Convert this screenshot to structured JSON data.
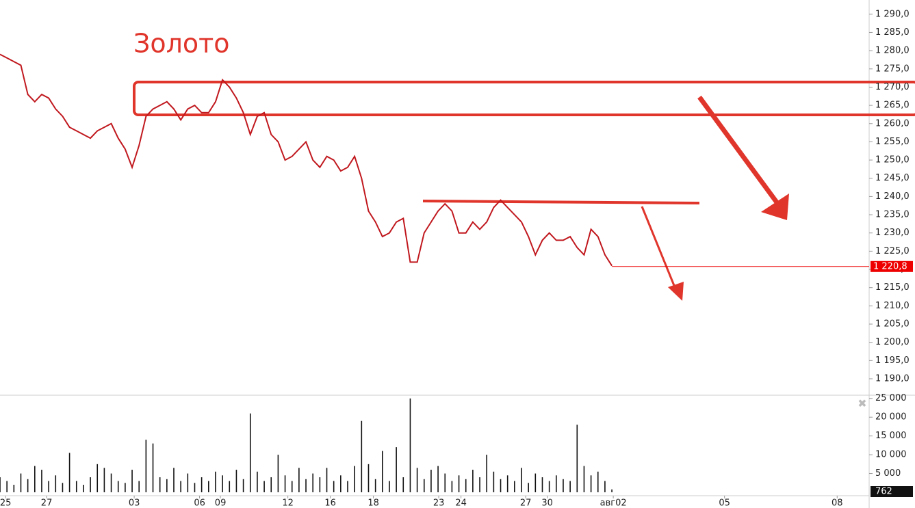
{
  "chart_data": [
    {
      "type": "line",
      "title": "Золото",
      "color": "#c0181e",
      "values": [
        1279,
        1278,
        1277,
        1276,
        1268,
        1266,
        1268,
        1267,
        1264,
        1262,
        1259,
        1258,
        1257,
        1256,
        1258,
        1259,
        1260,
        1256,
        1253,
        1248,
        1254,
        1262,
        1264,
        1265,
        1266,
        1264,
        1261,
        1264,
        1265,
        1263,
        1263,
        1266,
        1272,
        1270,
        1267,
        1263,
        1257,
        1262,
        1263,
        1257,
        1255,
        1250,
        1251,
        1253,
        1255,
        1250,
        1248,
        1251,
        1250,
        1247,
        1248,
        1251,
        1245,
        1236,
        1233,
        1229,
        1230,
        1233,
        1234,
        1222,
        1222,
        1230,
        1233,
        1236,
        1238,
        1236,
        1230,
        1230,
        1233,
        1231,
        1233,
        1237,
        1239,
        1237,
        1235,
        1233,
        1229,
        1224,
        1228,
        1230,
        1228,
        1228,
        1229,
        1226,
        1224,
        1231,
        1229,
        1224,
        1221
      ],
      "last": {
        "value": 1220.8,
        "label": "1 220,8"
      },
      "xlim": [
        0,
        125
      ],
      "ylim": [
        1185.5,
        1293.9
      ],
      "yticks": [
        {
          "value": 1190,
          "label": "1 190,0"
        },
        {
          "value": 1195,
          "label": "1 195,0"
        },
        {
          "value": 1200,
          "label": "1 200,0"
        },
        {
          "value": 1205,
          "label": "1 205,0"
        },
        {
          "value": 1210,
          "label": "1 210,0"
        },
        {
          "value": 1215,
          "label": "1 215,0"
        },
        {
          "value": 1220,
          "label": "1 220,0"
        },
        {
          "value": 1225,
          "label": "1 225,0"
        },
        {
          "value": 1230,
          "label": "1 230,0"
        },
        {
          "value": 1235,
          "label": "1 235,0"
        },
        {
          "value": 1240,
          "label": "1 240,0"
        },
        {
          "value": 1245,
          "label": "1 245,0"
        },
        {
          "value": 1250,
          "label": "1 250,0"
        },
        {
          "value": 1255,
          "label": "1 255,0"
        },
        {
          "value": 1260,
          "label": "1 260,0"
        },
        {
          "value": 1265,
          "label": "1 265,0"
        },
        {
          "value": 1270,
          "label": "1 270,0"
        },
        {
          "value": 1275,
          "label": "1 275,0"
        },
        {
          "value": 1280,
          "label": "1 280,0"
        },
        {
          "value": 1285,
          "label": "1 285,0"
        },
        {
          "value": 1290,
          "label": "1 290,0"
        }
      ]
    },
    {
      "type": "bar",
      "color": "#111111",
      "values": [
        4000,
        3000,
        2000,
        5000,
        3500,
        7000,
        6000,
        3000,
        4500,
        2500,
        10500,
        3000,
        2000,
        4000,
        7500,
        6500,
        5000,
        3000,
        2500,
        6000,
        3000,
        14000,
        13000,
        4000,
        3500,
        6500,
        3000,
        5000,
        2500,
        4000,
        3000,
        5500,
        4500,
        3000,
        6000,
        3500,
        21000,
        5500,
        3000,
        4000,
        10000,
        4500,
        3000,
        6500,
        3500,
        5000,
        4000,
        6500,
        3000,
        4500,
        3000,
        7000,
        19000,
        7500,
        3500,
        11000,
        3000,
        12000,
        4000,
        25000,
        6500,
        3500,
        6000,
        7000,
        5000,
        3000,
        4500,
        3500,
        6000,
        4000,
        10000,
        5500,
        3500,
        4500,
        3000,
        6500,
        2500,
        5000,
        4000,
        3000,
        4500,
        3500,
        3000,
        18000,
        7000,
        4500,
        5500,
        3000,
        762
      ],
      "xlim": [
        0,
        125
      ],
      "ylim": [
        0,
        25500
      ],
      "yticks": [
        {
          "value": 5000,
          "label": "5 000"
        },
        {
          "value": 10000,
          "label": "10 000"
        },
        {
          "value": 15000,
          "label": "15 000"
        },
        {
          "value": 20000,
          "label": "20 000"
        },
        {
          "value": 25000,
          "label": "25 000"
        }
      ],
      "xticks": [
        {
          "value": 0.8,
          "label": "25"
        },
        {
          "value": 6.7,
          "label": "27"
        },
        {
          "value": 19.3,
          "label": "03"
        },
        {
          "value": 28.7,
          "label": "06"
        },
        {
          "value": 31.7,
          "label": "09"
        },
        {
          "value": 41.4,
          "label": "12"
        },
        {
          "value": 47.5,
          "label": "16"
        },
        {
          "value": 53.7,
          "label": "18"
        },
        {
          "value": 63.1,
          "label": "23"
        },
        {
          "value": 66.3,
          "label": "24"
        },
        {
          "value": 75.6,
          "label": "27"
        },
        {
          "value": 78.7,
          "label": "30"
        },
        {
          "value": 88.2,
          "label": "авг02"
        },
        {
          "value": 104.2,
          "label": "05"
        },
        {
          "value": 120.4,
          "label": "08"
        }
      ]
    }
  ]
}
